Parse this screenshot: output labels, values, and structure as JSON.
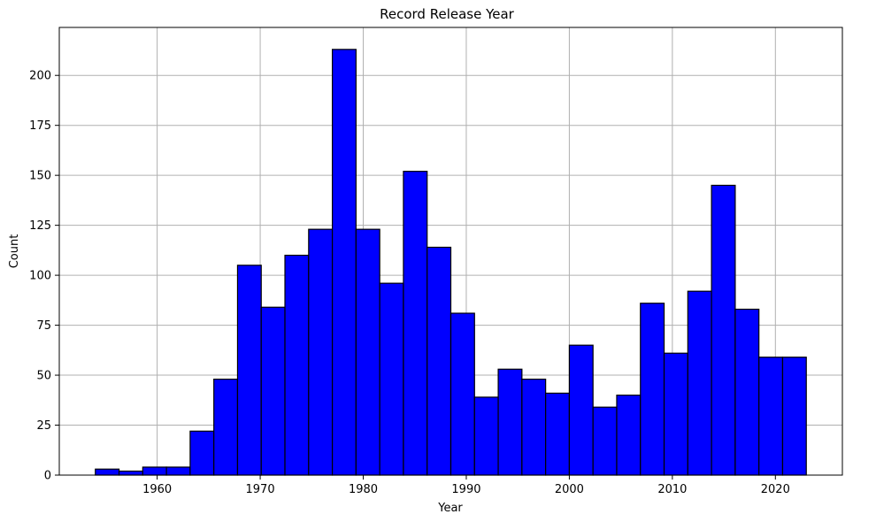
{
  "chart_data": {
    "type": "bar",
    "title": "Record Release Year",
    "xlabel": "Year",
    "ylabel": "Count",
    "bins": {
      "start": 1954,
      "width": 2.3
    },
    "values": [
      3,
      2,
      4,
      4,
      22,
      48,
      105,
      84,
      110,
      123,
      213,
      123,
      96,
      152,
      114,
      81,
      39,
      53,
      48,
      41,
      65,
      34,
      40,
      86,
      61,
      92,
      145,
      83,
      59,
      59
    ],
    "xlim": [
      1950.5,
      2026.5
    ],
    "ylim": [
      0,
      224
    ],
    "xticks": [
      1960,
      1970,
      1980,
      1990,
      2000,
      2010,
      2020
    ],
    "yticks": [
      0,
      25,
      50,
      75,
      100,
      125,
      150,
      175,
      200
    ],
    "bar_color": "#0000ff",
    "edge_color": "#000000",
    "grid": true
  }
}
